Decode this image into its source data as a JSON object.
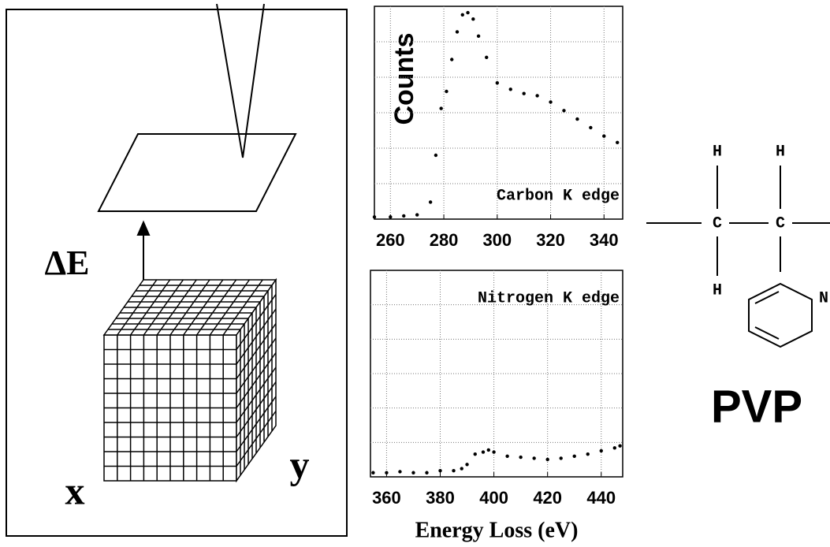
{
  "chart_data": [
    {
      "type": "scatter",
      "annotation": "Carbon K edge",
      "color": "#000",
      "x": [
        254,
        260,
        265,
        270,
        275,
        277,
        279,
        281,
        283,
        285,
        287,
        289,
        291,
        293,
        296,
        300,
        305,
        310,
        315,
        320,
        325,
        330,
        335,
        340,
        345
      ],
      "values": [
        1,
        1,
        1.5,
        2,
        8,
        30,
        52,
        60,
        75,
        88,
        96,
        97,
        94,
        86,
        76,
        64,
        61,
        59,
        58,
        55,
        51,
        47,
        43,
        39,
        36
      ],
      "xlim": [
        254,
        347
      ],
      "xticks": [
        260,
        280,
        300,
        320,
        340
      ],
      "ylim": [
        0,
        100
      ],
      "grid": true
    },
    {
      "type": "scatter",
      "annotation": "Nitrogen K edge",
      "color": "#000",
      "x": [
        355,
        360,
        365,
        370,
        375,
        380,
        385,
        388,
        390,
        393,
        396,
        398,
        400,
        405,
        410,
        415,
        420,
        425,
        430,
        435,
        440,
        445,
        447
      ],
      "values": [
        2,
        2,
        2.5,
        2,
        2,
        3,
        3,
        4,
        6,
        11,
        12,
        13,
        12,
        10,
        9.5,
        9,
        8.4,
        9,
        10,
        11,
        12.6,
        14,
        15
      ],
      "xlim": [
        354,
        448
      ],
      "xticks": [
        360,
        380,
        400,
        420,
        440
      ],
      "ylim": [
        0,
        100
      ],
      "grid": true
    }
  ],
  "figure": {
    "x_label": "Energy Loss (eV)",
    "y_label": "Counts"
  },
  "diagram": {
    "delta_e": "ΔE",
    "x_axis": "x",
    "y_axis": "y"
  },
  "molecule": {
    "atoms": [
      "H",
      "H",
      "C",
      "C",
      "H",
      "N"
    ],
    "name": "PVP"
  }
}
